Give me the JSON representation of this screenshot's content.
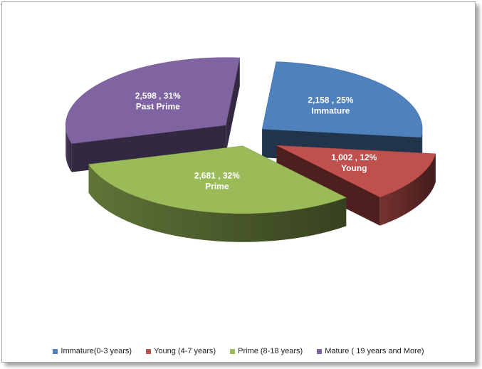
{
  "chart_data": {
    "type": "pie",
    "style": "3d-exploded",
    "legend_position": "bottom",
    "categories": [
      "Immature(0-3 years)",
      "Young (4-7 years)",
      "Prime (8-18 years)",
      "Mature ( 19 years and More)"
    ],
    "values": [
      2158,
      1002,
      2681,
      2598
    ],
    "percentages": [
      "25%",
      "12%",
      "32%",
      "31%"
    ],
    "colors": [
      "#4f81bd",
      "#c0504d",
      "#9bbb59",
      "#8064a2"
    ],
    "slices": [
      {
        "category": "Immature(0-3 years)",
        "value_label": "2,158",
        "percent_label": "25%",
        "name": "Immature",
        "color": "#4f81bd"
      },
      {
        "category": "Young (4-7 years)",
        "value_label": "1,002",
        "percent_label": "12%",
        "name": "Young",
        "color": "#c0504d"
      },
      {
        "category": "Prime (8-18 years)",
        "value_label": "2,681",
        "percent_label": "32%",
        "name": "Prime",
        "color": "#9bbb59"
      },
      {
        "category": "Mature ( 19 years and More)",
        "value_label": "2,598",
        "percent_label": "31%",
        "name": "Past Prime",
        "color": "#8064a2"
      }
    ]
  }
}
